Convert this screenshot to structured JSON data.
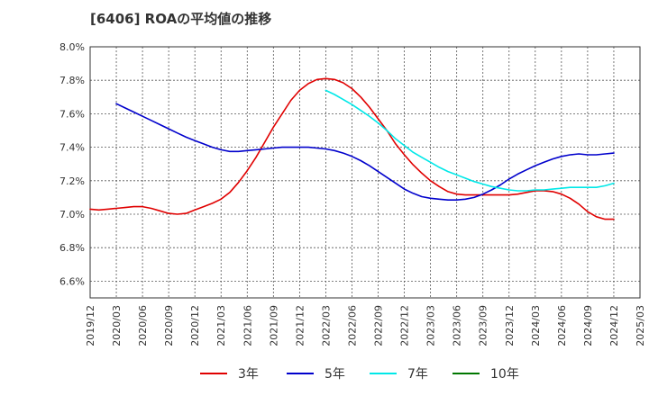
{
  "title": "[6406]  ROAの平均値の推移",
  "chart_data": {
    "type": "line",
    "ylim": [
      6.5,
      8.0
    ],
    "yticks": [
      6.6,
      6.8,
      7.0,
      7.2,
      7.4,
      7.6,
      7.8,
      8.0
    ],
    "ytick_labels": [
      "6.6%",
      "6.8%",
      "7.0%",
      "7.2%",
      "7.4%",
      "7.6%",
      "7.8%",
      "8.0%"
    ],
    "xticks": [
      "2019/12",
      "2020/03",
      "2020/06",
      "2020/09",
      "2020/12",
      "2021/03",
      "2021/06",
      "2021/09",
      "2021/12",
      "2022/03",
      "2022/06",
      "2022/09",
      "2022/12",
      "2023/03",
      "2023/06",
      "2023/09",
      "2023/12",
      "2024/03",
      "2024/06",
      "2024/09",
      "2024/12",
      "2025/03"
    ],
    "grid": true,
    "legend_position": "bottom",
    "series": [
      {
        "name": "3年",
        "color": "#e00000",
        "x": [
          "2019/12",
          "2020/01",
          "2020/02",
          "2020/03",
          "2020/04",
          "2020/05",
          "2020/06",
          "2020/07",
          "2020/08",
          "2020/09",
          "2020/10",
          "2020/11",
          "2020/12",
          "2021/01",
          "2021/02",
          "2021/03",
          "2021/04",
          "2021/05",
          "2021/06",
          "2021/07",
          "2021/08",
          "2021/09",
          "2021/10",
          "2021/11",
          "2021/12",
          "2022/01",
          "2022/02",
          "2022/03",
          "2022/04",
          "2022/05",
          "2022/06",
          "2022/07",
          "2022/08",
          "2022/09",
          "2022/10",
          "2022/11",
          "2022/12",
          "2023/01",
          "2023/02",
          "2023/03",
          "2023/04",
          "2023/05",
          "2023/06",
          "2023/07",
          "2023/08",
          "2023/09",
          "2023/10",
          "2023/11",
          "2023/12",
          "2024/01",
          "2024/02",
          "2024/03",
          "2024/04",
          "2024/05",
          "2024/06",
          "2024/07",
          "2024/08",
          "2024/09",
          "2024/10",
          "2024/11",
          "2024/12"
        ],
        "values": [
          7.03,
          7.025,
          7.03,
          7.035,
          7.04,
          7.045,
          7.045,
          7.035,
          7.02,
          7.005,
          7.0,
          7.005,
          7.025,
          7.045,
          7.065,
          7.09,
          7.13,
          7.19,
          7.26,
          7.34,
          7.43,
          7.52,
          7.6,
          7.68,
          7.74,
          7.78,
          7.805,
          7.81,
          7.805,
          7.785,
          7.75,
          7.7,
          7.64,
          7.57,
          7.5,
          7.42,
          7.355,
          7.295,
          7.245,
          7.2,
          7.165,
          7.135,
          7.12,
          7.115,
          7.115,
          7.115,
          7.115,
          7.115,
          7.115,
          7.12,
          7.13,
          7.14,
          7.14,
          7.135,
          7.12,
          7.095,
          7.06,
          7.015,
          6.985,
          6.97,
          6.97
        ]
      },
      {
        "name": "5年",
        "color": "#0000cc",
        "x": [
          "2020/03",
          "2020/04",
          "2020/05",
          "2020/06",
          "2020/07",
          "2020/08",
          "2020/09",
          "2020/10",
          "2020/11",
          "2020/12",
          "2021/01",
          "2021/02",
          "2021/03",
          "2021/04",
          "2021/05",
          "2021/06",
          "2021/07",
          "2021/08",
          "2021/09",
          "2021/10",
          "2021/11",
          "2021/12",
          "2022/01",
          "2022/02",
          "2022/03",
          "2022/04",
          "2022/05",
          "2022/06",
          "2022/07",
          "2022/08",
          "2022/09",
          "2022/10",
          "2022/11",
          "2022/12",
          "2023/01",
          "2023/02",
          "2023/03",
          "2023/04",
          "2023/05",
          "2023/06",
          "2023/07",
          "2023/08",
          "2023/09",
          "2023/10",
          "2023/11",
          "2023/12",
          "2024/01",
          "2024/02",
          "2024/03",
          "2024/04",
          "2024/05",
          "2024/06",
          "2024/07",
          "2024/08",
          "2024/09",
          "2024/10",
          "2024/11",
          "2024/12"
        ],
        "values": [
          7.66,
          7.635,
          7.61,
          7.585,
          7.56,
          7.535,
          7.51,
          7.485,
          7.46,
          7.44,
          7.42,
          7.4,
          7.385,
          7.375,
          7.375,
          7.38,
          7.385,
          7.39,
          7.395,
          7.4,
          7.4,
          7.4,
          7.4,
          7.395,
          7.39,
          7.38,
          7.365,
          7.345,
          7.32,
          7.29,
          7.255,
          7.22,
          7.185,
          7.15,
          7.125,
          7.105,
          7.095,
          7.09,
          7.085,
          7.085,
          7.09,
          7.1,
          7.12,
          7.145,
          7.175,
          7.21,
          7.24,
          7.265,
          7.29,
          7.31,
          7.33,
          7.345,
          7.355,
          7.36,
          7.355,
          7.355,
          7.36,
          7.365
        ]
      },
      {
        "name": "7年",
        "color": "#00e8e8",
        "x": [
          "2022/03",
          "2022/04",
          "2022/05",
          "2022/06",
          "2022/07",
          "2022/08",
          "2022/09",
          "2022/10",
          "2022/11",
          "2022/12",
          "2023/01",
          "2023/02",
          "2023/03",
          "2023/04",
          "2023/05",
          "2023/06",
          "2023/07",
          "2023/08",
          "2023/09",
          "2023/10",
          "2023/11",
          "2023/12",
          "2024/01",
          "2024/02",
          "2024/03",
          "2024/04",
          "2024/05",
          "2024/06",
          "2024/07",
          "2024/08",
          "2024/09",
          "2024/10",
          "2024/11",
          "2024/12"
        ],
        "values": [
          7.74,
          7.715,
          7.685,
          7.655,
          7.62,
          7.585,
          7.545,
          7.5,
          7.45,
          7.41,
          7.37,
          7.34,
          7.31,
          7.28,
          7.255,
          7.235,
          7.215,
          7.195,
          7.18,
          7.165,
          7.155,
          7.145,
          7.14,
          7.14,
          7.145,
          7.145,
          7.15,
          7.155,
          7.16,
          7.16,
          7.16,
          7.16,
          7.17,
          7.185
        ]
      },
      {
        "name": "10年",
        "color": "#007700",
        "x": [],
        "values": []
      }
    ]
  }
}
